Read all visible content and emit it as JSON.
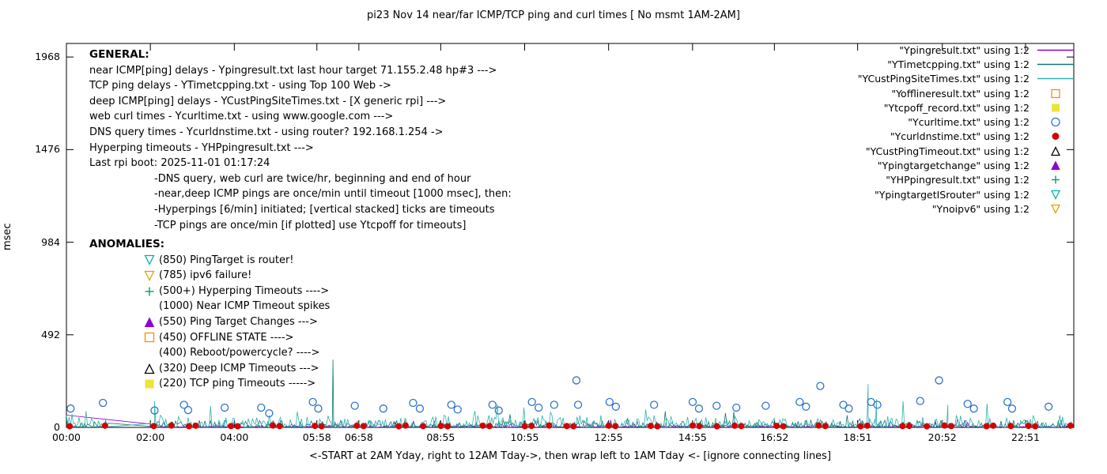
{
  "general": {
    "heading": "GENERAL:",
    "lines": [
      "near ICMP[ping] delays - Ypingresult.txt last hour target 71.155.2.48 hp#3 --->",
      "TCP ping delays - YTimetcpping.txt - using Top 100 Web ->",
      "deep ICMP[ping] delays - YCustPingSiteTimes.txt - [X generic rpi] --->",
      "web curl times - Ycurltime.txt - using www.google.com --->",
      "DNS query times - Ycurldnstime.txt - using router? 192.168.1.254 ->",
      "Hyperping timeouts - YHPpingresult.txt --->",
      "Last rpi boot: 2025-11-01 01:17:24"
    ],
    "notes": [
      "-DNS query, web curl are twice/hr, beginning and end of hour",
      "-near,deep ICMP pings are once/min until timeout [1000 msec], then:",
      "-Hyperpings [6/min] initiated; [vertical stacked] ticks are timeouts",
      "-TCP pings are once/min [if plotted] use Ytcpoff for timeouts]"
    ]
  },
  "anomalies": {
    "heading": "ANOMALIES:",
    "items": [
      {
        "marker": "tri-down-open",
        "color": "#00b0b0",
        "text": "(850) PingTarget is router!"
      },
      {
        "marker": "tri-down-open",
        "color": "#e69f00",
        "text": "(785) ipv6 failure!"
      },
      {
        "marker": "plus",
        "color": "#009e73",
        "text": "(500+) Hyperping Timeouts ---->"
      },
      {
        "marker": "none",
        "color": "",
        "text": "(1000) Near ICMP Timeout spikes"
      },
      {
        "marker": "tri-up-filled",
        "color": "#9400d3",
        "text": "(550) Ping Target Changes --->"
      },
      {
        "marker": "square-open",
        "color": "#ff8c00",
        "text": "(450) OFFLINE STATE ---->"
      },
      {
        "marker": "none",
        "color": "",
        "text": "(400) Reboot/powercycle? ---->"
      },
      {
        "marker": "tri-up-open",
        "color": "#000000",
        "text": "(320) Deep ICMP Timeouts --->"
      },
      {
        "marker": "square-filled",
        "color": "#efe23a",
        "text": "(220) TCP ping Timeouts ----->"
      }
    ]
  },
  "chart_data": {
    "type": "line+scatter",
    "title": "pi23 Nov 14  near/far ICMP/TCP ping and curl times [ No msmt 1AM-2AM]",
    "xlabel": "<-START at 2AM Yday, right to 12AM Tday->, then wrap left to 1AM Tday <- [ignore connecting lines]",
    "ylabel": "msec",
    "xlim_hours": [
      0,
      24
    ],
    "ylim": [
      0,
      2040
    ],
    "grid": false,
    "legend_position": "top-right",
    "y_ticks": [
      0,
      492,
      984,
      1476,
      1968
    ],
    "x_ticks": [
      {
        "label": "00:00",
        "h": 0
      },
      {
        "label": "02:00",
        "h": 2
      },
      {
        "label": "04:00",
        "h": 4
      },
      {
        "label": "05:58",
        "h": 5.967
      },
      {
        "label": "06:58",
        "h": 6.967
      },
      {
        "label": "08:55",
        "h": 8.917
      },
      {
        "label": "10:55",
        "h": 10.917
      },
      {
        "label": "12:55",
        "h": 12.917
      },
      {
        "label": "14:55",
        "h": 14.917
      },
      {
        "label": "16:52",
        "h": 16.867
      },
      {
        "label": "18:51",
        "h": 18.85
      },
      {
        "label": "20:52",
        "h": 20.867
      },
      {
        "label": "22:51",
        "h": 22.85
      }
    ],
    "series": [
      {
        "label": "\"Ypingresult.txt\" using 1:2",
        "style": "line",
        "color": "#9400d3",
        "seed": 11,
        "noise": {
          "min": 1,
          "max": 14,
          "ranges": [
            [
              2,
              24
            ]
          ]
        },
        "pre_points": [
          [
            0,
            65
          ]
        ]
      },
      {
        "label": "\"YTimetcpping.txt\" using 1:2",
        "style": "line",
        "color": "#0c7a70",
        "seed": 22,
        "noise": {
          "min": 2,
          "max": 38
        },
        "spikes": [
          [
            6.35,
            360
          ]
        ]
      },
      {
        "label": "\"YCustPingSiteTimes.txt\" using 1:2",
        "style": "line",
        "color": "#2db3ab",
        "seed": 33,
        "noise": {
          "min": 2,
          "max": 65
        },
        "spikes": [
          [
            2.1,
            140
          ],
          [
            19.1,
            230
          ],
          [
            19.3,
            150
          ],
          [
            21.0,
            120
          ]
        ]
      },
      {
        "label": "\"Yofflineresult.txt\" using 1:2",
        "style": "square-open",
        "color": "#ff8c00",
        "points": []
      },
      {
        "label": "\"Ytcpoff_record.txt\" using 1:2",
        "style": "square-filled",
        "color": "#efe23a",
        "points": []
      },
      {
        "label": "\"Ycurltime.txt\" using 1:2",
        "style": "circle-open",
        "color": "#2e75cc",
        "points": [
          [
            0.1,
            100
          ],
          [
            0.87,
            130
          ],
          [
            2.1,
            90
          ],
          [
            2.8,
            120
          ],
          [
            2.9,
            92
          ],
          [
            3.77,
            105
          ],
          [
            4.64,
            105
          ],
          [
            4.83,
            75
          ],
          [
            5.87,
            135
          ],
          [
            6.0,
            100
          ],
          [
            6.87,
            115
          ],
          [
            7.55,
            100
          ],
          [
            8.26,
            130
          ],
          [
            8.42,
            100
          ],
          [
            9.17,
            120
          ],
          [
            9.32,
            95
          ],
          [
            10.15,
            120
          ],
          [
            10.3,
            90
          ],
          [
            11.09,
            135
          ],
          [
            11.25,
            105
          ],
          [
            11.62,
            120
          ],
          [
            12.15,
            250
          ],
          [
            12.19,
            120
          ],
          [
            12.94,
            135
          ],
          [
            13.09,
            110
          ],
          [
            14.0,
            120
          ],
          [
            14.92,
            135
          ],
          [
            15.07,
            100
          ],
          [
            15.49,
            115
          ],
          [
            15.96,
            105
          ],
          [
            16.66,
            115
          ],
          [
            17.47,
            135
          ],
          [
            17.62,
            110
          ],
          [
            17.96,
            220
          ],
          [
            18.51,
            120
          ],
          [
            18.64,
            100
          ],
          [
            19.17,
            135
          ],
          [
            19.32,
            120
          ],
          [
            20.34,
            140
          ],
          [
            20.79,
            250
          ],
          [
            21.47,
            125
          ],
          [
            21.62,
            100
          ],
          [
            22.42,
            135
          ],
          [
            22.53,
            100
          ],
          [
            23.4,
            110
          ]
        ]
      },
      {
        "label": "\"Ycurldnstime.txt\" using 1:2",
        "style": "circle-filled",
        "color": "#d40000",
        "points": [
          [
            0.08,
            6
          ],
          [
            0.92,
            9
          ],
          [
            2.08,
            7
          ],
          [
            2.5,
            10
          ],
          [
            2.92,
            6
          ],
          [
            3.08,
            9
          ],
          [
            3.92,
            7
          ],
          [
            4.08,
            6
          ],
          [
            4.92,
            10
          ],
          [
            5.08,
            7
          ],
          [
            5.92,
            8
          ],
          [
            6.08,
            6
          ],
          [
            6.92,
            9
          ],
          [
            7.08,
            7
          ],
          [
            7.92,
            6
          ],
          [
            8.08,
            10
          ],
          [
            8.5,
            7
          ],
          [
            8.92,
            8
          ],
          [
            9.08,
            6
          ],
          [
            9.92,
            9
          ],
          [
            10.08,
            7
          ],
          [
            10.92,
            6
          ],
          [
            11.08,
            8
          ],
          [
            11.5,
            10
          ],
          [
            11.92,
            7
          ],
          [
            12.08,
            6
          ],
          [
            12.92,
            9
          ],
          [
            13.08,
            7
          ],
          [
            13.92,
            8
          ],
          [
            14.08,
            6
          ],
          [
            14.92,
            10
          ],
          [
            15.08,
            7
          ],
          [
            15.5,
            6
          ],
          [
            15.92,
            9
          ],
          [
            16.08,
            7
          ],
          [
            16.92,
            8
          ],
          [
            17.08,
            6
          ],
          [
            17.92,
            10
          ],
          [
            18.08,
            7
          ],
          [
            18.92,
            6
          ],
          [
            19.08,
            9
          ],
          [
            19.92,
            7
          ],
          [
            20.08,
            8
          ],
          [
            20.5,
            6
          ],
          [
            20.92,
            10
          ],
          [
            21.08,
            7
          ],
          [
            21.92,
            6
          ],
          [
            22.08,
            9
          ],
          [
            22.5,
            7
          ],
          [
            22.92,
            8
          ],
          [
            23.08,
            6
          ],
          [
            23.92,
            9
          ]
        ]
      },
      {
        "label": "\"YCustPingTimeout.txt\" using 1:2",
        "style": "tri-up-open",
        "color": "#000000",
        "points": []
      },
      {
        "label": "\"Ypingtargetchange\" using 1:2",
        "style": "tri-up-filled",
        "color": "#9400d3",
        "points": []
      },
      {
        "label": "\"YHPpingresult.txt\" using 1:2",
        "style": "plus",
        "color": "#009e73",
        "points": []
      },
      {
        "label": "\"YpingtargetISrouter\" using 1:2",
        "style": "tri-down-open",
        "color": "#00b0b0",
        "points": []
      },
      {
        "label": "\"Ynoipv6\" using 1:2",
        "style": "tri-down-open",
        "color": "#e69f00",
        "points": []
      }
    ]
  }
}
